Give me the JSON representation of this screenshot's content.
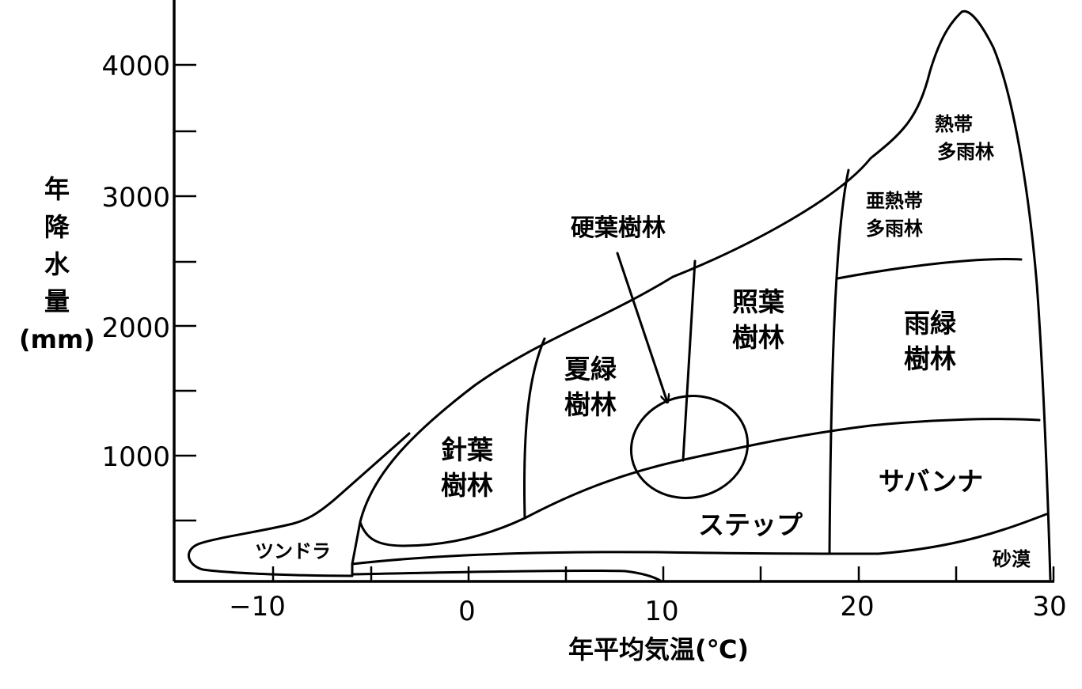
{
  "axes": {
    "y_label_chars": [
      "年",
      "降",
      "水",
      "量",
      "(mm)"
    ],
    "x_label": "年平均気温(℃)",
    "y_ticks": [
      "1000",
      "2000",
      "3000",
      "4000"
    ],
    "x_ticks": [
      "−10",
      "0",
      "10",
      "20",
      "30"
    ]
  },
  "regions": {
    "tundra": "ツンドラ",
    "coniferous": [
      "針葉",
      "樹林"
    ],
    "deciduous": [
      "夏緑",
      "樹林"
    ],
    "sclerophyll": "硬葉樹林",
    "laurel": [
      "照葉",
      "樹林"
    ],
    "subtropical": [
      "亜熱帯",
      "多雨林"
    ],
    "tropical": [
      "熱帯",
      "多雨林"
    ],
    "raingreen": [
      "雨緑",
      "樹林"
    ],
    "savanna": "サバンナ",
    "steppe": "ステップ",
    "desert": "砂漠"
  }
}
